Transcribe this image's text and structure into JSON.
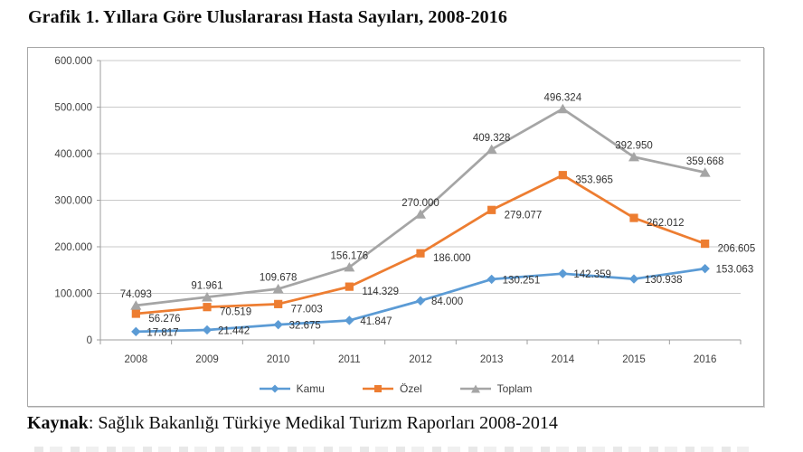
{
  "page": {
    "title": "Grafik 1. Yıllara Göre Uluslararası Hasta Sayıları, 2008-2016",
    "source": {
      "label": "Kaynak",
      "text": ": Sağlık Bakanlığı Türkiye Medikal Turizm Raporları 2008-2014"
    }
  },
  "chart_data": {
    "type": "line",
    "title": "Grafik 1. Yıllara Göre Uluslararası Hasta Sayıları, 2008-2016",
    "categories": [
      "2008",
      "2009",
      "2010",
      "2011",
      "2012",
      "2013",
      "2014",
      "2015",
      "2016"
    ],
    "series": [
      {
        "name": "Kamu",
        "color": "#5B9BD5",
        "marker": "diamond",
        "label_position": "right",
        "values": [
          17817,
          21442,
          32675,
          41847,
          84000,
          130251,
          142359,
          130938,
          153063
        ],
        "labels": [
          "17.817",
          "21.442",
          "32.675",
          "41.847",
          "84.000",
          "130.251",
          "142.359",
          "130.938",
          "153.063"
        ]
      },
      {
        "name": "Özel",
        "color": "#ED7D31",
        "marker": "square",
        "label_position": "right-low",
        "values": [
          56276,
          70519,
          77003,
          114329,
          186000,
          279077,
          353965,
          262012,
          206605
        ],
        "labels": [
          "56.276",
          "70.519",
          "77.003",
          "114.329",
          "186.000",
          "279.077",
          "353.965",
          "262.012",
          "206.605"
        ]
      },
      {
        "name": "Toplam",
        "color": "#A5A5A5",
        "marker": "triangle",
        "label_position": "above",
        "values": [
          74093,
          91961,
          109678,
          156176,
          270000,
          409328,
          496324,
          392950,
          359668
        ],
        "labels": [
          "74.093",
          "91.961",
          "109.678",
          "156.176",
          "270.000",
          "409.328",
          "496.324",
          "392.950",
          "359.668"
        ]
      }
    ],
    "ylim": [
      0,
      600000
    ],
    "y_step": 100000,
    "y_tick_labels": [
      "0",
      "100.000",
      "200.000",
      "300.000",
      "400.000",
      "500.000",
      "600.000"
    ],
    "grid": true,
    "legend_position": "bottom",
    "legend": [
      "Kamu",
      "Özel",
      "Toplam"
    ],
    "axis_text_color": "#404040",
    "gridline_color": "#C9C9C9",
    "axis_line_color": "#9E9E9E"
  }
}
